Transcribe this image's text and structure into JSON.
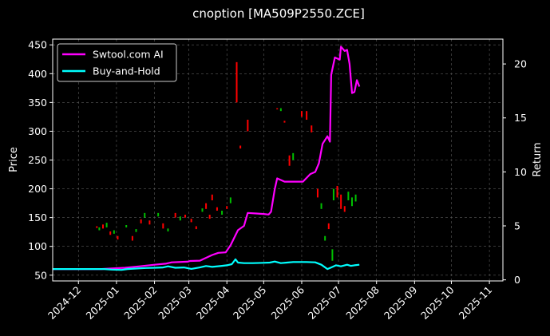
{
  "chart_data": {
    "type": "line",
    "title": "cnoption [MA509P2550.ZCE]",
    "ylabel": "Price",
    "ylabel_right": "Return",
    "background": "#000000",
    "grid": true,
    "legend_position": "top-left",
    "x_ticks": [
      "2024-12",
      "2025-01",
      "2025-02",
      "2025-03",
      "2025-04",
      "2025-05",
      "2025-06",
      "2025-07",
      "2025-08",
      "2025-09",
      "2025-10",
      "2025-11"
    ],
    "xlim": [
      "2024-11-10",
      "2025-11-12"
    ],
    "ylim": [
      40,
      460
    ],
    "ylim_right": [
      -0.1,
      22.3
    ],
    "y_ticks": [
      50,
      100,
      150,
      200,
      250,
      300,
      350,
      400,
      450
    ],
    "y_ticks_right": [
      0,
      5,
      10,
      15,
      20
    ],
    "colors": {
      "up": "#00c000",
      "down": "#ff0000",
      "ai": "#ff00ff",
      "bh": "#00ffff"
    },
    "series": [
      {
        "name": "Swtool.com AI",
        "color": "#ff00ff",
        "axis": "right",
        "points": [
          [
            "2024-11-10",
            1.0
          ],
          [
            "2024-12-20",
            1.0
          ],
          [
            "2024-12-28",
            1.05
          ],
          [
            "2025-01-08",
            1.12
          ],
          [
            "2025-01-20",
            1.25
          ],
          [
            "2025-02-01",
            1.4
          ],
          [
            "2025-02-10",
            1.5
          ],
          [
            "2025-02-15",
            1.62
          ],
          [
            "2025-02-28",
            1.68
          ],
          [
            "2025-03-02",
            1.75
          ],
          [
            "2025-03-10",
            1.78
          ],
          [
            "2025-03-20",
            2.3
          ],
          [
            "2025-03-25",
            2.5
          ],
          [
            "2025-03-31",
            2.55
          ],
          [
            "2025-04-04",
            3.2
          ],
          [
            "2025-04-10",
            4.6
          ],
          [
            "2025-04-15",
            5.0
          ],
          [
            "2025-04-18",
            6.2
          ],
          [
            "2025-04-25",
            6.15
          ],
          [
            "2025-05-01",
            6.1
          ],
          [
            "2025-05-05",
            6.05
          ],
          [
            "2025-05-07",
            6.3
          ],
          [
            "2025-05-10",
            8.4
          ],
          [
            "2025-05-12",
            9.4
          ],
          [
            "2025-05-18",
            9.1
          ],
          [
            "2025-06-02",
            9.1
          ],
          [
            "2025-06-08",
            9.8
          ],
          [
            "2025-06-12",
            10.0
          ],
          [
            "2025-06-15",
            10.8
          ],
          [
            "2025-06-18",
            12.6
          ],
          [
            "2025-06-22",
            13.3
          ],
          [
            "2025-06-24",
            12.8
          ],
          [
            "2025-06-25",
            19.0
          ],
          [
            "2025-06-28",
            20.6
          ],
          [
            "2025-07-02",
            20.4
          ],
          [
            "2025-07-03",
            21.6
          ],
          [
            "2025-07-06",
            21.2
          ],
          [
            "2025-07-08",
            21.3
          ],
          [
            "2025-07-10",
            20.0
          ],
          [
            "2025-07-12",
            17.3
          ],
          [
            "2025-07-14",
            17.4
          ],
          [
            "2025-07-16",
            18.5
          ],
          [
            "2025-07-18",
            17.9
          ]
        ]
      },
      {
        "name": "Buy-and-Hold",
        "color": "#00ffff",
        "axis": "right",
        "points": [
          [
            "2024-11-10",
            1.0
          ],
          [
            "2024-12-22",
            1.0
          ],
          [
            "2024-12-28",
            0.95
          ],
          [
            "2025-01-05",
            0.92
          ],
          [
            "2025-01-10",
            1.0
          ],
          [
            "2025-01-18",
            1.05
          ],
          [
            "2025-01-25",
            1.1
          ],
          [
            "2025-02-01",
            1.12
          ],
          [
            "2025-02-08",
            1.15
          ],
          [
            "2025-02-12",
            1.25
          ],
          [
            "2025-02-18",
            1.12
          ],
          [
            "2025-02-25",
            1.15
          ],
          [
            "2025-03-03",
            1.02
          ],
          [
            "2025-03-10",
            1.15
          ],
          [
            "2025-03-15",
            1.28
          ],
          [
            "2025-03-20",
            1.2
          ],
          [
            "2025-03-28",
            1.3
          ],
          [
            "2025-04-01",
            1.35
          ],
          [
            "2025-04-05",
            1.45
          ],
          [
            "2025-04-08",
            1.9
          ],
          [
            "2025-04-10",
            1.6
          ],
          [
            "2025-04-15",
            1.55
          ],
          [
            "2025-04-22",
            1.55
          ],
          [
            "2025-05-01",
            1.58
          ],
          [
            "2025-05-06",
            1.6
          ],
          [
            "2025-05-10",
            1.7
          ],
          [
            "2025-05-15",
            1.55
          ],
          [
            "2025-05-20",
            1.6
          ],
          [
            "2025-05-25",
            1.65
          ],
          [
            "2025-06-05",
            1.65
          ],
          [
            "2025-06-12",
            1.62
          ],
          [
            "2025-06-17",
            1.4
          ],
          [
            "2025-06-22",
            1.0
          ],
          [
            "2025-06-25",
            1.15
          ],
          [
            "2025-06-29",
            1.35
          ],
          [
            "2025-07-03",
            1.25
          ],
          [
            "2025-07-08",
            1.4
          ],
          [
            "2025-07-11",
            1.3
          ],
          [
            "2025-07-14",
            1.35
          ],
          [
            "2025-07-18",
            1.4
          ]
        ]
      }
    ],
    "candles": [
      [
        "2024-12-16",
        135,
        132
      ],
      [
        "2024-12-18",
        128,
        133
      ],
      [
        "2024-12-21",
        138,
        131
      ],
      [
        "2024-12-24",
        133,
        141
      ],
      [
        "2024-12-27",
        126,
        120
      ],
      [
        "2024-12-30",
        122,
        128
      ],
      [
        "2025-01-02",
        118,
        112
      ],
      [
        "2025-01-09",
        133,
        137
      ],
      [
        "2025-01-14",
        118,
        110
      ],
      [
        "2025-01-17",
        125,
        130
      ],
      [
        "2025-01-21",
        147,
        140
      ],
      [
        "2025-01-24",
        150,
        158
      ],
      [
        "2025-01-28",
        145,
        138
      ],
      [
        "2025-02-04",
        152,
        158
      ],
      [
        "2025-02-08",
        140,
        131
      ],
      [
        "2025-02-12",
        126,
        131
      ],
      [
        "2025-02-18",
        158,
        150
      ],
      [
        "2025-02-22",
        145,
        152
      ],
      [
        "2025-02-26",
        155,
        150
      ],
      [
        "2025-03-03",
        148,
        142
      ],
      [
        "2025-03-07",
        135,
        130
      ],
      [
        "2025-03-12",
        160,
        166
      ],
      [
        "2025-03-15",
        175,
        165
      ],
      [
        "2025-03-18",
        155,
        148
      ],
      [
        "2025-03-20",
        190,
        180
      ],
      [
        "2025-03-24",
        168,
        162
      ],
      [
        "2025-03-28",
        155,
        162
      ],
      [
        "2025-04-01",
        170,
        165
      ],
      [
        "2025-04-04",
        175,
        185
      ],
      [
        "2025-04-09",
        420,
        350
      ],
      [
        "2025-04-12",
        275,
        270
      ],
      [
        "2025-04-18",
        320,
        300
      ],
      [
        "2025-05-12",
        340,
        338
      ],
      [
        "2025-05-15",
        335,
        340
      ],
      [
        "2025-05-18",
        318,
        315
      ],
      [
        "2025-05-22",
        258,
        240
      ],
      [
        "2025-05-25",
        250,
        262
      ],
      [
        "2025-06-01",
        335,
        325
      ],
      [
        "2025-06-05",
        335,
        320
      ],
      [
        "2025-06-09",
        310,
        298
      ],
      [
        "2025-06-14",
        200,
        185
      ],
      [
        "2025-06-17",
        165,
        175
      ],
      [
        "2025-06-20",
        110,
        118
      ],
      [
        "2025-06-23",
        140,
        130
      ],
      [
        "2025-06-26",
        75,
        95
      ],
      [
        "2025-06-27",
        180,
        200
      ],
      [
        "2025-06-30",
        205,
        185
      ],
      [
        "2025-07-03",
        190,
        165
      ],
      [
        "2025-07-06",
        170,
        160
      ],
      [
        "2025-07-09",
        180,
        195
      ],
      [
        "2025-07-12",
        170,
        185
      ],
      [
        "2025-07-15",
        178,
        190
      ]
    ]
  }
}
